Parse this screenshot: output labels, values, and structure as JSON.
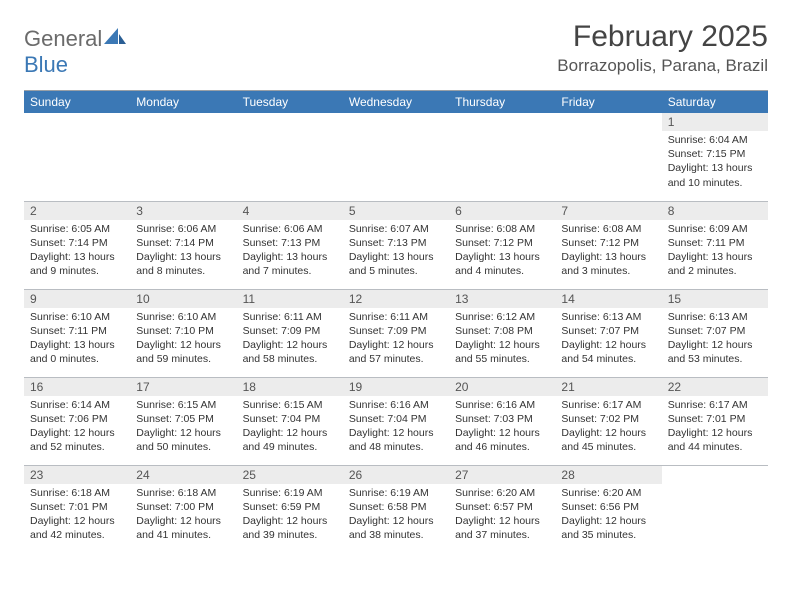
{
  "brand": {
    "part1": "General",
    "part2": "Blue"
  },
  "title": "February 2025",
  "location": "Borrazopolis, Parana, Brazil",
  "colors": {
    "header_bg": "#3b78b5",
    "header_text": "#ffffff",
    "daynum_bg": "#ececec",
    "body_text": "#333333",
    "rule": "#b9bdc2",
    "logo_gray": "#6b6b6b",
    "logo_blue": "#3b78b5",
    "page_bg": "#ffffff"
  },
  "layout": {
    "cols": 7,
    "rows": 5,
    "col_width_pct": 14.28
  },
  "day_headers": [
    "Sunday",
    "Monday",
    "Tuesday",
    "Wednesday",
    "Thursday",
    "Friday",
    "Saturday"
  ],
  "weeks": [
    [
      null,
      null,
      null,
      null,
      null,
      null,
      {
        "n": "1",
        "sunrise": "Sunrise: 6:04 AM",
        "sunset": "Sunset: 7:15 PM",
        "day1": "Daylight: 13 hours",
        "day2": "and 10 minutes."
      }
    ],
    [
      {
        "n": "2",
        "sunrise": "Sunrise: 6:05 AM",
        "sunset": "Sunset: 7:14 PM",
        "day1": "Daylight: 13 hours",
        "day2": "and 9 minutes."
      },
      {
        "n": "3",
        "sunrise": "Sunrise: 6:06 AM",
        "sunset": "Sunset: 7:14 PM",
        "day1": "Daylight: 13 hours",
        "day2": "and 8 minutes."
      },
      {
        "n": "4",
        "sunrise": "Sunrise: 6:06 AM",
        "sunset": "Sunset: 7:13 PM",
        "day1": "Daylight: 13 hours",
        "day2": "and 7 minutes."
      },
      {
        "n": "5",
        "sunrise": "Sunrise: 6:07 AM",
        "sunset": "Sunset: 7:13 PM",
        "day1": "Daylight: 13 hours",
        "day2": "and 5 minutes."
      },
      {
        "n": "6",
        "sunrise": "Sunrise: 6:08 AM",
        "sunset": "Sunset: 7:12 PM",
        "day1": "Daylight: 13 hours",
        "day2": "and 4 minutes."
      },
      {
        "n": "7",
        "sunrise": "Sunrise: 6:08 AM",
        "sunset": "Sunset: 7:12 PM",
        "day1": "Daylight: 13 hours",
        "day2": "and 3 minutes."
      },
      {
        "n": "8",
        "sunrise": "Sunrise: 6:09 AM",
        "sunset": "Sunset: 7:11 PM",
        "day1": "Daylight: 13 hours",
        "day2": "and 2 minutes."
      }
    ],
    [
      {
        "n": "9",
        "sunrise": "Sunrise: 6:10 AM",
        "sunset": "Sunset: 7:11 PM",
        "day1": "Daylight: 13 hours",
        "day2": "and 0 minutes."
      },
      {
        "n": "10",
        "sunrise": "Sunrise: 6:10 AM",
        "sunset": "Sunset: 7:10 PM",
        "day1": "Daylight: 12 hours",
        "day2": "and 59 minutes."
      },
      {
        "n": "11",
        "sunrise": "Sunrise: 6:11 AM",
        "sunset": "Sunset: 7:09 PM",
        "day1": "Daylight: 12 hours",
        "day2": "and 58 minutes."
      },
      {
        "n": "12",
        "sunrise": "Sunrise: 6:11 AM",
        "sunset": "Sunset: 7:09 PM",
        "day1": "Daylight: 12 hours",
        "day2": "and 57 minutes."
      },
      {
        "n": "13",
        "sunrise": "Sunrise: 6:12 AM",
        "sunset": "Sunset: 7:08 PM",
        "day1": "Daylight: 12 hours",
        "day2": "and 55 minutes."
      },
      {
        "n": "14",
        "sunrise": "Sunrise: 6:13 AM",
        "sunset": "Sunset: 7:07 PM",
        "day1": "Daylight: 12 hours",
        "day2": "and 54 minutes."
      },
      {
        "n": "15",
        "sunrise": "Sunrise: 6:13 AM",
        "sunset": "Sunset: 7:07 PM",
        "day1": "Daylight: 12 hours",
        "day2": "and 53 minutes."
      }
    ],
    [
      {
        "n": "16",
        "sunrise": "Sunrise: 6:14 AM",
        "sunset": "Sunset: 7:06 PM",
        "day1": "Daylight: 12 hours",
        "day2": "and 52 minutes."
      },
      {
        "n": "17",
        "sunrise": "Sunrise: 6:15 AM",
        "sunset": "Sunset: 7:05 PM",
        "day1": "Daylight: 12 hours",
        "day2": "and 50 minutes."
      },
      {
        "n": "18",
        "sunrise": "Sunrise: 6:15 AM",
        "sunset": "Sunset: 7:04 PM",
        "day1": "Daylight: 12 hours",
        "day2": "and 49 minutes."
      },
      {
        "n": "19",
        "sunrise": "Sunrise: 6:16 AM",
        "sunset": "Sunset: 7:04 PM",
        "day1": "Daylight: 12 hours",
        "day2": "and 48 minutes."
      },
      {
        "n": "20",
        "sunrise": "Sunrise: 6:16 AM",
        "sunset": "Sunset: 7:03 PM",
        "day1": "Daylight: 12 hours",
        "day2": "and 46 minutes."
      },
      {
        "n": "21",
        "sunrise": "Sunrise: 6:17 AM",
        "sunset": "Sunset: 7:02 PM",
        "day1": "Daylight: 12 hours",
        "day2": "and 45 minutes."
      },
      {
        "n": "22",
        "sunrise": "Sunrise: 6:17 AM",
        "sunset": "Sunset: 7:01 PM",
        "day1": "Daylight: 12 hours",
        "day2": "and 44 minutes."
      }
    ],
    [
      {
        "n": "23",
        "sunrise": "Sunrise: 6:18 AM",
        "sunset": "Sunset: 7:01 PM",
        "day1": "Daylight: 12 hours",
        "day2": "and 42 minutes."
      },
      {
        "n": "24",
        "sunrise": "Sunrise: 6:18 AM",
        "sunset": "Sunset: 7:00 PM",
        "day1": "Daylight: 12 hours",
        "day2": "and 41 minutes."
      },
      {
        "n": "25",
        "sunrise": "Sunrise: 6:19 AM",
        "sunset": "Sunset: 6:59 PM",
        "day1": "Daylight: 12 hours",
        "day2": "and 39 minutes."
      },
      {
        "n": "26",
        "sunrise": "Sunrise: 6:19 AM",
        "sunset": "Sunset: 6:58 PM",
        "day1": "Daylight: 12 hours",
        "day2": "and 38 minutes."
      },
      {
        "n": "27",
        "sunrise": "Sunrise: 6:20 AM",
        "sunset": "Sunset: 6:57 PM",
        "day1": "Daylight: 12 hours",
        "day2": "and 37 minutes."
      },
      {
        "n": "28",
        "sunrise": "Sunrise: 6:20 AM",
        "sunset": "Sunset: 6:56 PM",
        "day1": "Daylight: 12 hours",
        "day2": "and 35 minutes."
      },
      null
    ]
  ]
}
